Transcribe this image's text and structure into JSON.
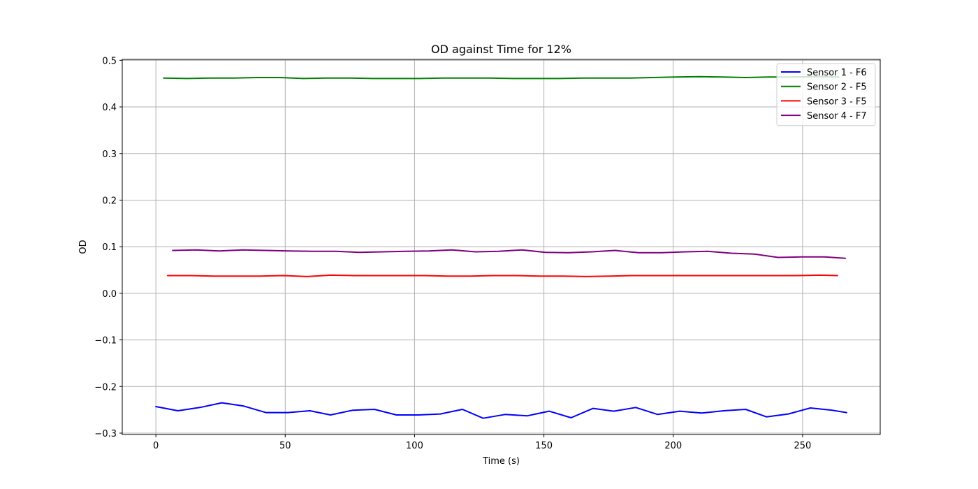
{
  "chart_data": {
    "type": "line",
    "title": "OD against Time for 12%",
    "xlabel": "Time (s)",
    "ylabel": "OD",
    "xlim": [
      -13,
      280
    ],
    "ylim": [
      -0.303,
      0.502
    ],
    "xticks": [
      0,
      50,
      100,
      150,
      200,
      250
    ],
    "yticks": [
      0.5,
      0.4,
      0.3,
      0.2,
      0.1,
      0.0,
      -0.1,
      -0.2,
      -0.3
    ],
    "ytick_labels": [
      "0.5",
      "0.4",
      "0.3",
      "0.2",
      "0.1",
      "0.0",
      "−0.1",
      "−0.2",
      "−0.3"
    ],
    "grid": true,
    "legend_position": "top-right",
    "series": [
      {
        "name": "Sensor 1 - F6",
        "color": "#0000ff",
        "x": [
          0,
          8.5,
          17,
          25.5,
          34,
          42.5,
          51,
          59.5,
          67.5,
          76,
          84.5,
          93,
          101.5,
          110,
          118.5,
          126.5,
          135,
          143.5,
          152,
          160.5,
          169,
          177,
          185.5,
          194,
          202.5,
          211,
          219.5,
          228,
          236,
          244.5,
          253,
          261.5,
          267
        ],
        "y": [
          -0.243,
          -0.252,
          -0.245,
          -0.235,
          -0.242,
          -0.256,
          -0.256,
          -0.252,
          -0.261,
          -0.251,
          -0.249,
          -0.261,
          -0.261,
          -0.259,
          -0.249,
          -0.268,
          -0.26,
          -0.263,
          -0.253,
          -0.267,
          -0.247,
          -0.253,
          -0.245,
          -0.26,
          -0.253,
          -0.257,
          -0.252,
          -0.249,
          -0.265,
          -0.259,
          -0.246,
          -0.251,
          -0.256
        ]
      },
      {
        "name": "Sensor 2 - F5",
        "color": "#008000",
        "x": [
          3,
          12,
          21,
          30,
          39,
          48,
          57,
          66,
          75,
          84,
          93,
          102,
          111,
          120,
          129,
          138,
          147,
          156,
          165,
          174,
          183,
          192,
          201,
          210,
          219,
          228,
          237,
          246,
          255,
          264
        ],
        "y": [
          0.462,
          0.461,
          0.462,
          0.462,
          0.463,
          0.463,
          0.461,
          0.462,
          0.462,
          0.461,
          0.461,
          0.461,
          0.462,
          0.462,
          0.462,
          0.461,
          0.461,
          0.461,
          0.462,
          0.462,
          0.462,
          0.463,
          0.464,
          0.465,
          0.464,
          0.463,
          0.464,
          0.464,
          0.465,
          0.464
        ]
      },
      {
        "name": "Sensor 3 - F5",
        "color": "#ff0000",
        "x": [
          4.5,
          13.5,
          22.5,
          31.5,
          40.5,
          49.5,
          58.5,
          67.5,
          76.5,
          85.5,
          94.5,
          103.5,
          112.5,
          121.5,
          130.5,
          139.5,
          148.5,
          157.5,
          166.5,
          175.5,
          184.5,
          193.5,
          202.5,
          211.5,
          220.5,
          229.5,
          238.5,
          247.5,
          256.5,
          263.5
        ],
        "y": [
          0.038,
          0.038,
          0.037,
          0.037,
          0.037,
          0.038,
          0.036,
          0.039,
          0.038,
          0.038,
          0.038,
          0.038,
          0.037,
          0.037,
          0.038,
          0.038,
          0.037,
          0.037,
          0.036,
          0.037,
          0.038,
          0.038,
          0.038,
          0.038,
          0.038,
          0.038,
          0.038,
          0.038,
          0.039,
          0.038
        ]
      },
      {
        "name": "Sensor 4 - F7",
        "color": "#800080",
        "x": [
          6.5,
          15.5,
          24.5,
          33.5,
          42.5,
          51.5,
          60.5,
          69.5,
          78.5,
          87.5,
          96.5,
          105.5,
          114.5,
          123.5,
          132.5,
          141.5,
          150.5,
          159.5,
          168.5,
          177.5,
          186.5,
          195.5,
          204.5,
          213.5,
          222.5,
          231.5,
          240.5,
          249.5,
          258.5,
          266.5
        ],
        "y": [
          0.092,
          0.093,
          0.091,
          0.093,
          0.092,
          0.091,
          0.09,
          0.09,
          0.088,
          0.089,
          0.09,
          0.091,
          0.093,
          0.089,
          0.09,
          0.093,
          0.088,
          0.087,
          0.089,
          0.092,
          0.087,
          0.087,
          0.089,
          0.09,
          0.086,
          0.084,
          0.077,
          0.078,
          0.078,
          0.075
        ]
      }
    ]
  }
}
